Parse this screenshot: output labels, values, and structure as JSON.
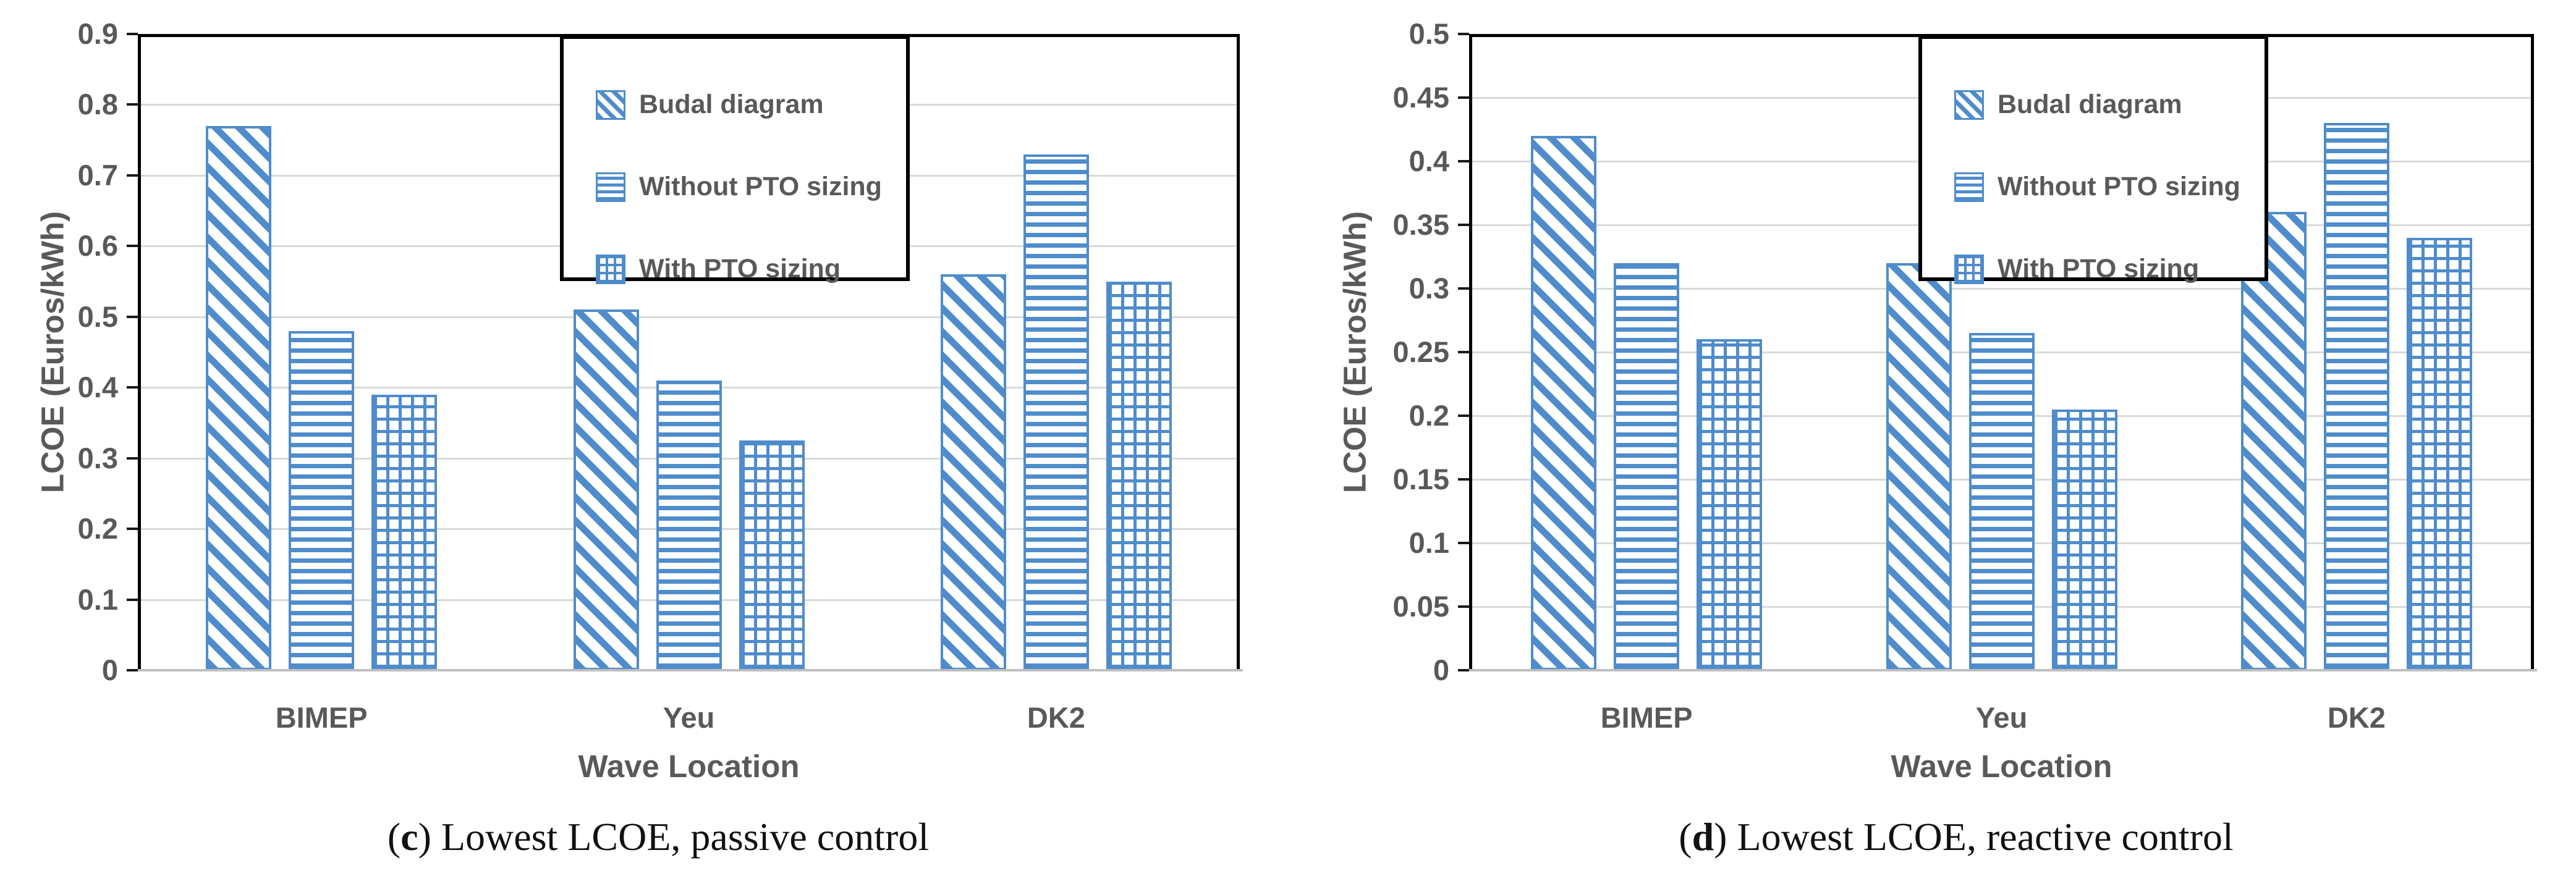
{
  "colors": {
    "bar_blue": "#4F8CCB",
    "text_gray": "#595959",
    "gridline_gray": "#D9D9D9",
    "baseline_gray": "#BFBFBF",
    "frame_black": "#000000",
    "background": "#FFFFFF"
  },
  "chart_data": [
    {
      "type": "bar",
      "panel_letter": "c",
      "caption": {
        "open": "(",
        "letter": "c",
        "close": ") ",
        "text": "Lowest LCOE, passive control"
      },
      "xlabel": "Wave Location",
      "ylabel": "LCOE (Euros/kWh)",
      "categories": [
        "BIMEP",
        "Yeu",
        "DK2"
      ],
      "series": [
        {
          "name": "Budal diagram",
          "pattern": "diagonal",
          "values": [
            0.77,
            0.51,
            0.56
          ]
        },
        {
          "name": "Without PTO sizing",
          "pattern": "horizontal",
          "values": [
            0.48,
            0.41,
            0.73
          ]
        },
        {
          "name": "With PTO sizing",
          "pattern": "grid",
          "values": [
            0.39,
            0.325,
            0.55
          ]
        }
      ],
      "ylim": [
        0,
        0.9
      ],
      "ytick_labels": [
        "0",
        "0.1",
        "0.2",
        "0.3",
        "0.4",
        "0.5",
        "0.6",
        "0.7",
        "0.8",
        "0.9"
      ],
      "grid": true,
      "legend_position": "top-right-inside"
    },
    {
      "type": "bar",
      "panel_letter": "d",
      "caption": {
        "open": "(",
        "letter": "d",
        "close": ") ",
        "text": "Lowest LCOE, reactive control"
      },
      "xlabel": "Wave Location",
      "ylabel": "LCOE (Euros/kWh)",
      "categories": [
        "BIMEP",
        "Yeu",
        "DK2"
      ],
      "series": [
        {
          "name": "Budal diagram",
          "pattern": "diagonal",
          "values": [
            0.42,
            0.32,
            0.36
          ]
        },
        {
          "name": "Without PTO sizing",
          "pattern": "horizontal",
          "values": [
            0.32,
            0.265,
            0.43
          ]
        },
        {
          "name": "With PTO sizing",
          "pattern": "grid",
          "values": [
            0.26,
            0.205,
            0.34
          ]
        }
      ],
      "ylim": [
        0,
        0.5
      ],
      "ytick_labels": [
        "0",
        "0.05",
        "0.1",
        "0.15",
        "0.2",
        "0.25",
        "0.3",
        "0.35",
        "0.4",
        "0.45",
        "0.5"
      ],
      "grid": true,
      "legend_position": "top-right-inside"
    }
  ]
}
